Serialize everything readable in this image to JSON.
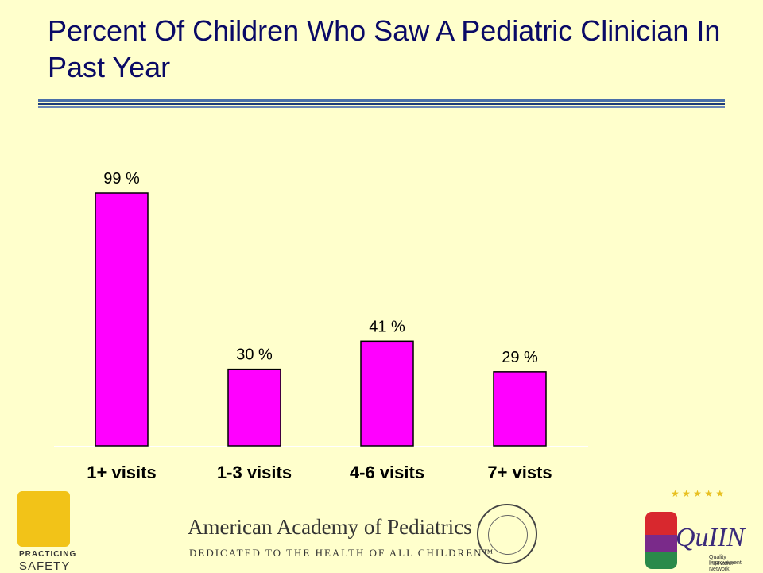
{
  "title": "Percent Of Children Who Saw A Pediatric Clinician In Past Year",
  "chart_data": {
    "type": "bar",
    "title": "",
    "categories": [
      "1+ visits",
      "1-3 visits",
      "4-6 visits",
      "7+ vists"
    ],
    "values": [
      99,
      30,
      41,
      29
    ],
    "data_labels": [
      "99 %",
      "30 %",
      "41 %",
      "29 %"
    ],
    "xlabel": "",
    "ylabel": "",
    "ylim": [
      0,
      100
    ],
    "grid": false,
    "legend": "none",
    "bar_color": "#FF00FF"
  },
  "footer": {
    "practicing_safety_line1": "PRACTICING",
    "practicing_safety_line2": "SAFETY",
    "aap_name": "American Academy of Pediatrics",
    "aap_tagline": "DEDICATED TO THE HEALTH OF ALL CHILDREN™",
    "quiin_name": "QuIIN",
    "quiin_sub1": "Quality Improvement",
    "quiin_sub2": "Innovation Network"
  },
  "colors": {
    "background": "#FFFFCC",
    "title": "#0A0A66",
    "rule": "#1E3C78"
  }
}
